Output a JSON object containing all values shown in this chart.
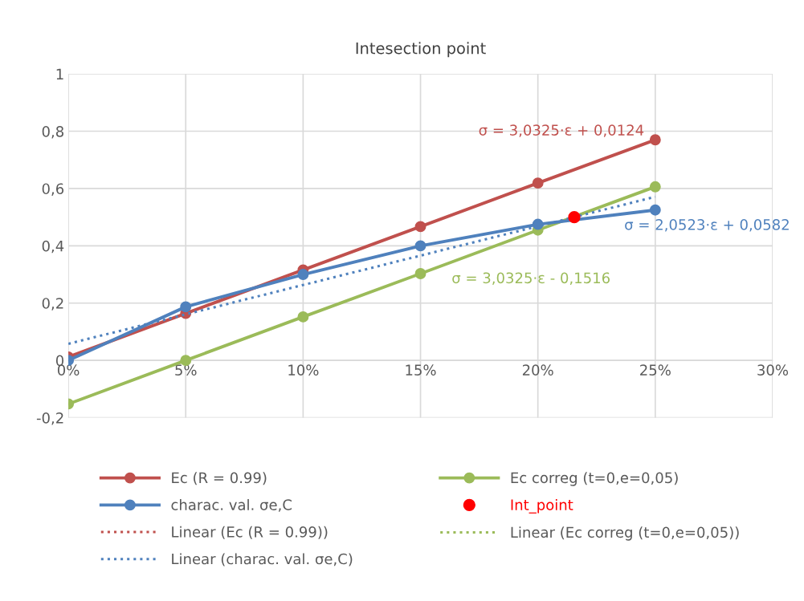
{
  "chart_data": {
    "type": "line",
    "title": "Intesection point",
    "x": [
      0,
      0.05,
      0.1,
      0.15,
      0.2,
      0.25
    ],
    "series": [
      {
        "name": "Ec (R = 0.99)",
        "color": "#c0504d",
        "values": [
          0.012,
          0.164,
          0.316,
          0.467,
          0.619,
          0.77
        ],
        "marker": "circle",
        "line_style": "solid"
      },
      {
        "name": "Ec correg (t=0,e=0,05)",
        "color": "#9bbb59",
        "values": [
          -0.152,
          0.0,
          0.152,
          0.303,
          0.455,
          0.606
        ],
        "marker": "circle",
        "line_style": "solid"
      },
      {
        "name": "charac. val. σe,C",
        "color": "#4f81bd",
        "values": [
          0.0,
          0.187,
          0.3,
          0.4,
          0.475,
          0.525
        ],
        "marker": "circle",
        "line_style": "solid"
      },
      {
        "name": "Int_point",
        "type": "scatter",
        "color": "#ff0000",
        "x": [
          0.2155
        ],
        "values": [
          0.5
        ],
        "marker": "circle"
      },
      {
        "name": "Linear (Ec (R = 0.99))",
        "color": "#c0504d",
        "values": [
          null,
          null,
          null,
          null,
          null,
          null
        ],
        "marker": "none",
        "line_style": "dotted"
      },
      {
        "name": "Linear (Ec correg (t=0,e=0,05))",
        "color": "#9bbb59",
        "values": [
          null,
          null,
          null,
          null,
          null,
          null
        ],
        "marker": "none",
        "line_style": "dotted"
      },
      {
        "name": "Linear (charac. val. σe,C)",
        "color": "#4f81bd",
        "x": [
          0,
          0.25
        ],
        "values": [
          0.058,
          0.571
        ],
        "marker": "none",
        "line_style": "dotted"
      }
    ],
    "annotations": [
      "σ = 3,0325·ε + 0,0124",
      "σ = 3,0325·ε - 0,1516",
      "σ = 2,0523·ε + 0,0582"
    ],
    "xlim": [
      0,
      0.3
    ],
    "xticks": [
      {
        "value": 0,
        "label": "0%"
      },
      {
        "value": 0.05,
        "label": "5%"
      },
      {
        "value": 0.1,
        "label": "10%"
      },
      {
        "value": 0.15,
        "label": "15%"
      },
      {
        "value": 0.2,
        "label": "20%"
      },
      {
        "value": 0.25,
        "label": "25%"
      },
      {
        "value": 0.3,
        "label": "30%"
      }
    ],
    "ylim": [
      -0.2,
      1
    ],
    "yticks": [
      {
        "value": -0.2,
        "label": "-0,2"
      },
      0,
      {
        "value": 0.2,
        "label": "0,2"
      },
      {
        "value": 0.4,
        "label": "0,4"
      },
      {
        "value": 0.6,
        "label": "0,6"
      },
      {
        "value": 0.8,
        "label": "0,8"
      },
      1
    ],
    "grid": true,
    "legend": "bottom"
  }
}
